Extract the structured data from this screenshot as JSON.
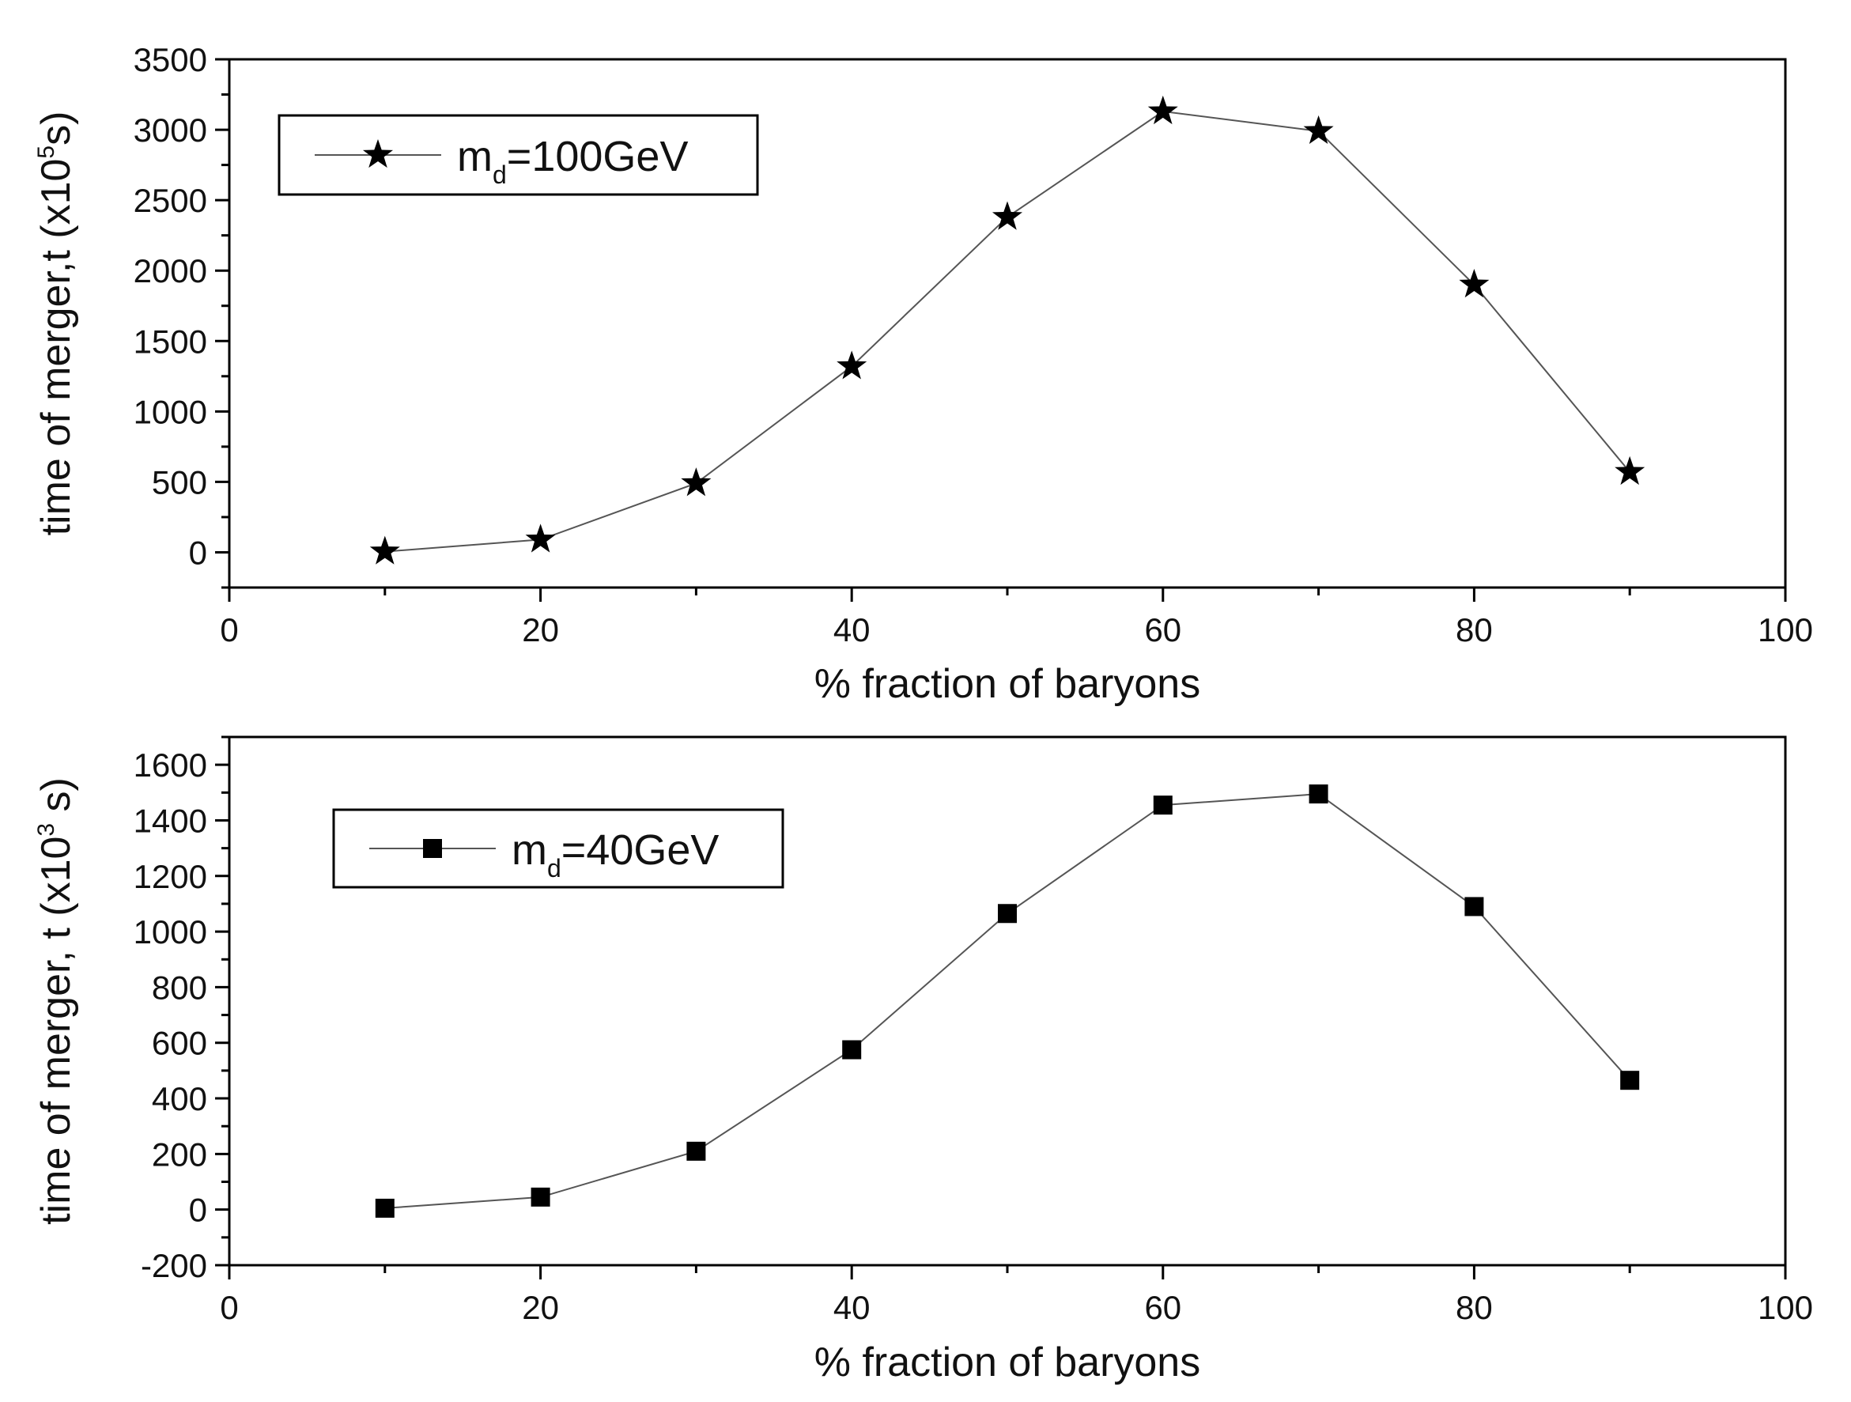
{
  "chart_data": [
    {
      "type": "line",
      "xlabel": "% fraction of baryons",
      "ylabel": {
        "prefix": "time of merger,t (x10",
        "exponent": "5",
        "suffix": "s)"
      },
      "xlim": [
        0,
        100
      ],
      "ylim": [
        -250,
        3500
      ],
      "x_ticks": [
        0,
        20,
        40,
        60,
        80,
        100
      ],
      "y_ticks": [
        0,
        500,
        1000,
        1500,
        2000,
        2500,
        3000,
        3500
      ],
      "grid": false,
      "legend_position": "top-left",
      "marker": "star",
      "color": "#000000",
      "series": [
        {
          "legend": {
            "prefix": "m",
            "subscript": "d",
            "suffix": "=100GeV"
          },
          "x": [
            10,
            20,
            30,
            40,
            50,
            60,
            70,
            80,
            90
          ],
          "y": [
            5,
            90,
            490,
            1320,
            2380,
            3130,
            2990,
            1900,
            570
          ]
        }
      ]
    },
    {
      "type": "line",
      "xlabel": "% fraction of baryons",
      "ylabel": {
        "prefix": "time of merger, t (x10",
        "exponent": "3",
        "suffix": " s)"
      },
      "xlim": [
        0,
        100
      ],
      "ylim": [
        -200,
        1700
      ],
      "x_ticks": [
        0,
        20,
        40,
        60,
        80,
        100
      ],
      "y_ticks": [
        -200,
        0,
        200,
        400,
        600,
        800,
        1000,
        1200,
        1400,
        1600
      ],
      "grid": false,
      "legend_position": "top-left",
      "marker": "square",
      "color": "#000000",
      "series": [
        {
          "legend": {
            "prefix": "m",
            "subscript": "d",
            "suffix": "=40GeV"
          },
          "x": [
            10,
            20,
            30,
            40,
            50,
            60,
            70,
            80,
            90
          ],
          "y": [
            5,
            45,
            210,
            575,
            1065,
            1455,
            1495,
            1090,
            465
          ]
        }
      ]
    }
  ]
}
